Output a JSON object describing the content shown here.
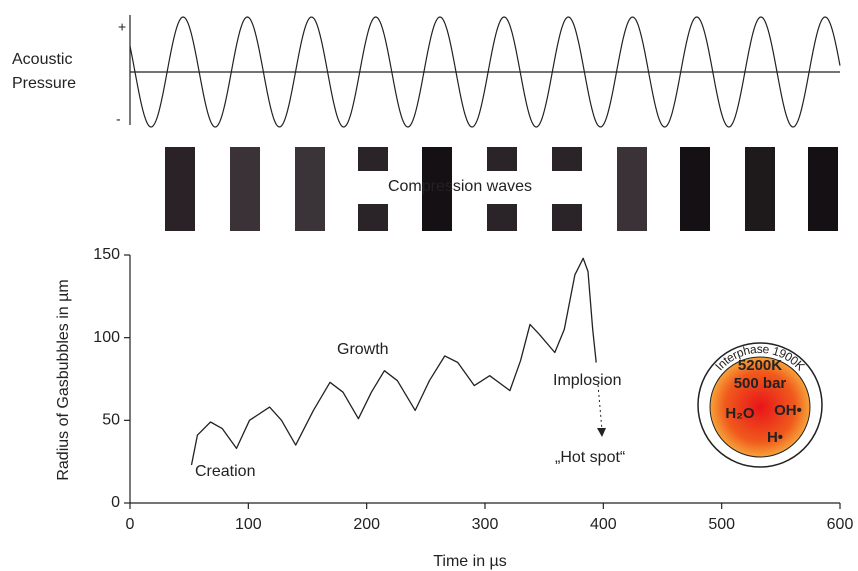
{
  "pressure_panel": {
    "label_lines": [
      "Acoustic",
      "Pressure"
    ],
    "plus": "+",
    "minus": "-"
  },
  "compression_panel": {
    "label": "Compression waves"
  },
  "chart_data": {
    "type": "line",
    "ylabel": "Radius of Gasbubbles in µm",
    "xlabel": "Time in µs",
    "xlim": [
      0,
      600
    ],
    "xticks": [
      0,
      100,
      200,
      300,
      400,
      500,
      600
    ],
    "ylim": [
      0,
      150
    ],
    "yticks": [
      0,
      50,
      100,
      150
    ],
    "x": [
      52,
      57,
      68,
      78,
      90,
      101,
      118,
      128,
      140,
      155,
      169,
      180,
      193,
      204,
      215,
      226,
      241,
      253,
      266,
      277,
      291,
      304,
      321,
      330,
      338,
      346,
      359,
      367,
      376,
      383,
      387,
      391,
      394
    ],
    "series": [
      {
        "color": "#222222",
        "values": [
          23,
          41,
          49,
          45,
          33,
          50,
          58,
          50,
          35,
          56,
          73,
          67,
          51,
          67,
          80,
          74,
          56,
          74,
          89,
          85,
          71,
          77,
          68,
          86,
          108,
          102,
          91,
          105,
          138,
          148,
          140,
          105,
          85
        ]
      }
    ],
    "annotations": [
      "Creation",
      "Growth",
      "Implosion",
      "„Hot spot“"
    ],
    "inset": {
      "ring": "Interphase 1900K",
      "lines": [
        "5200K",
        "500 bar",
        "H₂O",
        "OH•",
        "H•"
      ]
    }
  }
}
